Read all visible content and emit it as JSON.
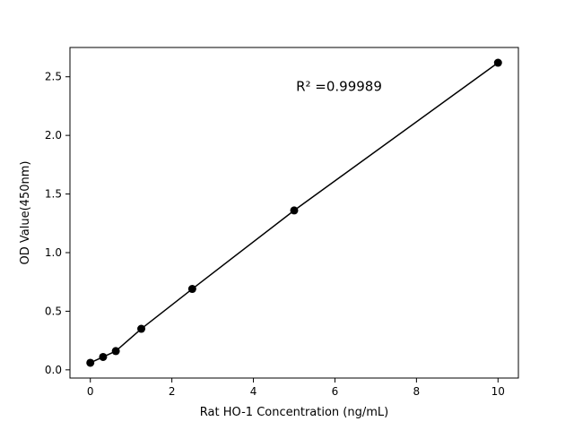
{
  "chart_data": {
    "type": "scatter",
    "title": "",
    "xlabel": "Rat HO-1 Concentration (ng/mL)",
    "ylabel": "OD Value(450nm)",
    "x": [
      0,
      0.3125,
      0.625,
      1.25,
      2.5,
      5,
      10
    ],
    "y": [
      0.06,
      0.11,
      0.16,
      0.35,
      0.69,
      1.36,
      2.62
    ],
    "xlim": [
      -0.5,
      10.5
    ],
    "ylim": [
      -0.07,
      2.75
    ],
    "xtick_values": [
      0,
      2,
      4,
      6,
      8,
      10
    ],
    "xtick_labels": [
      "0",
      "2",
      "4",
      "6",
      "8",
      "10"
    ],
    "ytick_values": [
      0.0,
      0.5,
      1.0,
      1.5,
      2.0,
      2.5
    ],
    "ytick_labels": [
      "0.0",
      "0.5",
      "1.0",
      "1.5",
      "2.0",
      "2.5"
    ],
    "annotation": {
      "text": "R² =0.99989",
      "x": 6.1,
      "y": 2.38
    },
    "line_color": "#000000",
    "marker_color": "#000000",
    "marker_radius": 4.5,
    "line_width": 1.5,
    "grid": false,
    "legend": null
  }
}
